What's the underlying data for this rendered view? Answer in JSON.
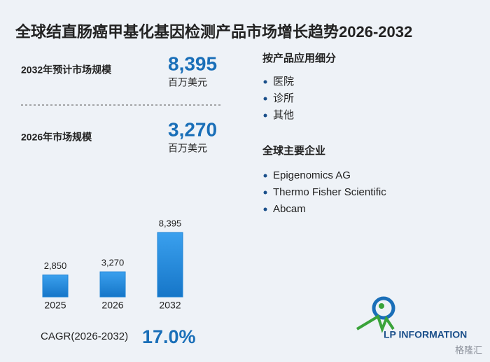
{
  "title": "全球结直肠癌甲基化基因检测产品市场增长趋势2026-2032",
  "stats": [
    {
      "label": "2032年预计市场规模",
      "value": "8,395",
      "unit": "百万美元"
    },
    {
      "label": "2026年市场规模",
      "value": "3,270",
      "unit": "百万美元"
    }
  ],
  "segments": {
    "title": "按产品应用细分",
    "items": [
      "医院",
      "诊所",
      "其他"
    ]
  },
  "companies": {
    "title": "全球主要企业",
    "items": [
      "Epigenomics AG",
      "Thermo Fisher Scientific",
      "Abcam"
    ]
  },
  "cagr": {
    "label": "CAGR(2026-2032)",
    "value": "17.0%"
  },
  "logo": "LP INFORMATION",
  "watermark": "格隆汇",
  "chart_data": {
    "type": "bar",
    "categories": [
      "2025",
      "2026",
      "2032"
    ],
    "values": [
      2850,
      3270,
      8395
    ],
    "value_labels": [
      "2,850",
      "3,270",
      "8,395"
    ],
    "color": "#1f84d6",
    "ylim": [
      0,
      8395
    ]
  }
}
